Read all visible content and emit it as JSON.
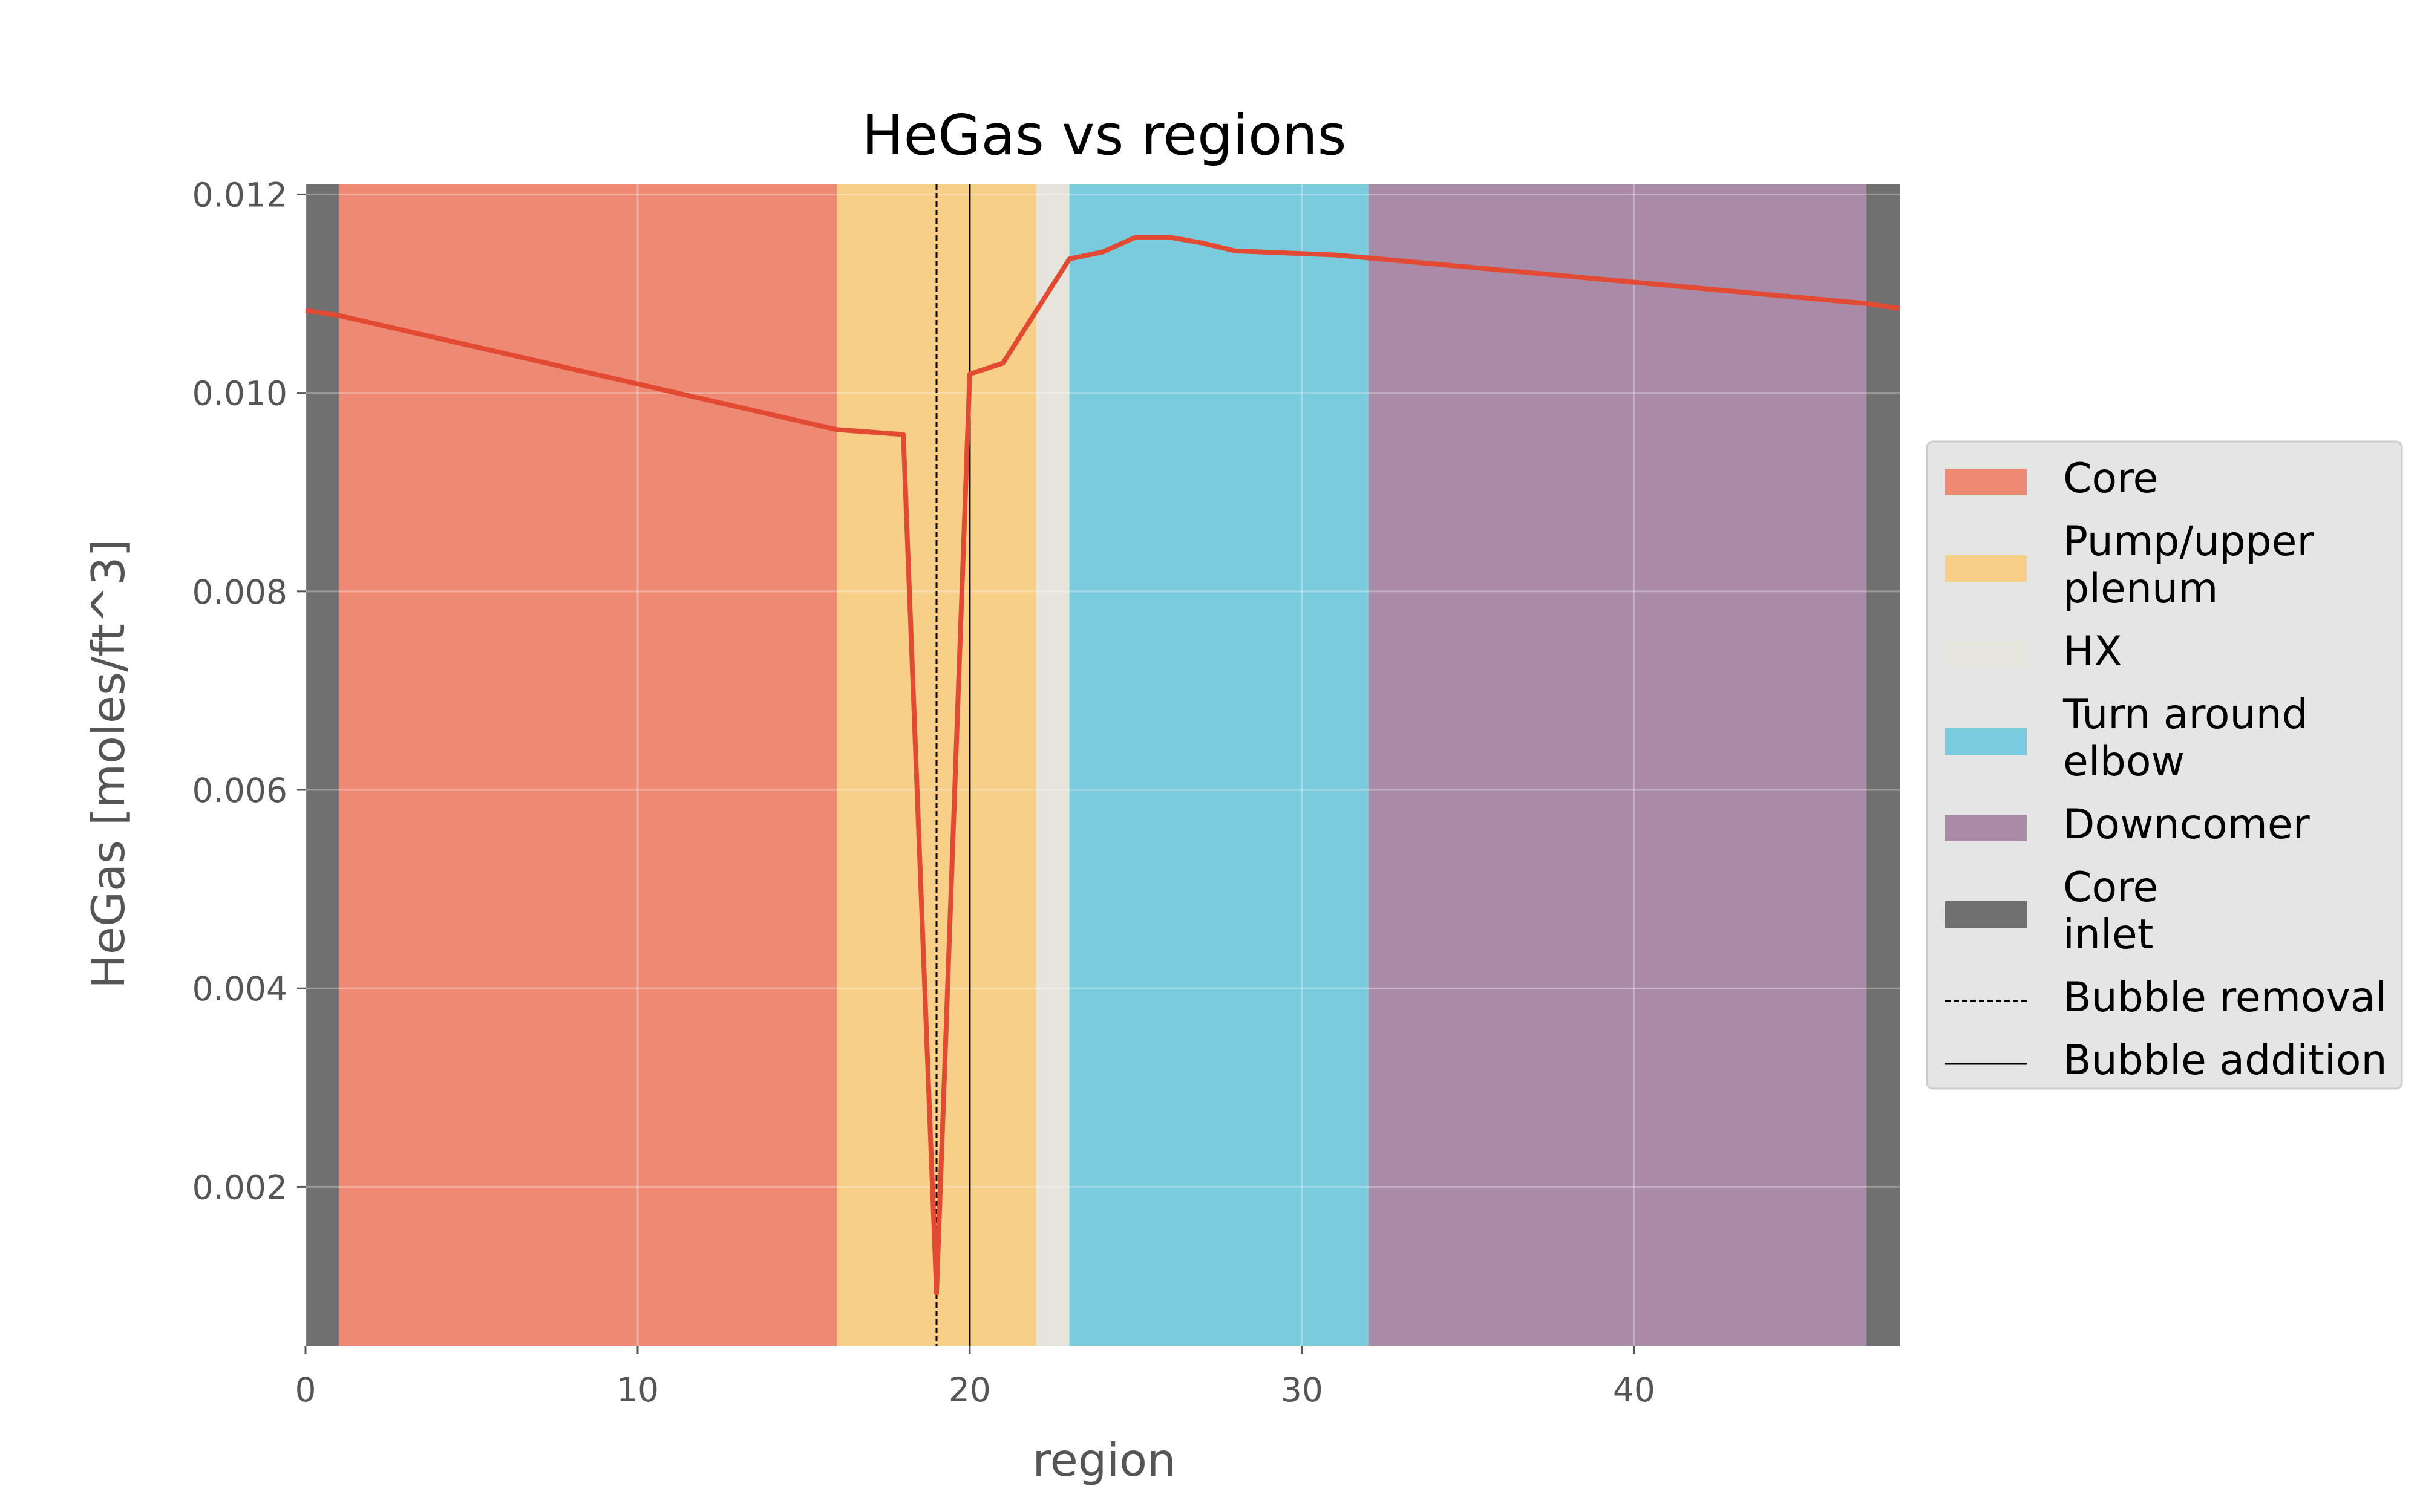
{
  "chart_data": {
    "type": "line",
    "title": "HeGas vs regions",
    "xlabel": "region",
    "ylabel": "HeGas [moles/ft^3]",
    "xlim": [
      0,
      48
    ],
    "ylim": [
      0.0004,
      0.0121
    ],
    "x_ticks": [
      0,
      10,
      20,
      30,
      40
    ],
    "y_ticks": [
      0.002,
      0.004,
      0.006,
      0.008,
      0.01,
      0.012
    ],
    "x_tick_labels": [
      "0",
      "10",
      "20",
      "30",
      "40"
    ],
    "y_tick_labels": [
      "0.002",
      "0.004",
      "0.006",
      "0.008",
      "0.010",
      "0.012"
    ],
    "grid": true,
    "legend_position": "right",
    "regions": [
      {
        "name": "Core",
        "spans": [
          [
            1,
            16
          ]
        ],
        "color": "#ee8a74"
      },
      {
        "name": "Pump/upper plenum",
        "spans": [
          [
            16,
            22
          ]
        ],
        "color": "#f7cf88"
      },
      {
        "name": "HX",
        "spans": [
          [
            22,
            23
          ]
        ],
        "color": "#e5e5dc"
      },
      {
        "name": "Turn around elbow",
        "spans": [
          [
            23,
            32
          ]
        ],
        "color": "#7bcbde"
      },
      {
        "name": "Downcomer",
        "spans": [
          [
            32,
            47
          ]
        ],
        "color": "#a98aa7"
      },
      {
        "name": "Core inlet",
        "spans": [
          [
            0,
            1
          ],
          [
            47,
            48
          ]
        ],
        "color": "#707070"
      }
    ],
    "vlines": [
      {
        "name": "Bubble removal",
        "x": 19,
        "style": "dashed",
        "color": "#000000"
      },
      {
        "name": "Bubble addition",
        "x": 20,
        "style": "solid",
        "color": "#000000"
      }
    ],
    "legend": [
      {
        "lines": [
          "Core"
        ],
        "kind": "patch",
        "color": "#ee8a74"
      },
      {
        "lines": [
          "Pump/upper",
          "plenum"
        ],
        "kind": "patch",
        "color": "#f7cf88"
      },
      {
        "lines": [
          "HX"
        ],
        "kind": "patch",
        "color": "#e5e5dc"
      },
      {
        "lines": [
          "Turn around",
          "elbow"
        ],
        "kind": "patch",
        "color": "#7bcbde"
      },
      {
        "lines": [
          "Downcomer"
        ],
        "kind": "patch",
        "color": "#a98aa7"
      },
      {
        "lines": [
          "Core",
          "inlet"
        ],
        "kind": "patch",
        "color": "#707070"
      },
      {
        "lines": [
          "Bubble removal"
        ],
        "kind": "dashed",
        "color": "#000000"
      },
      {
        "lines": [
          "Bubble addition"
        ],
        "kind": "solid",
        "color": "#000000"
      }
    ],
    "series": [
      {
        "color": "#e24a33",
        "x": [
          0,
          1,
          16,
          18,
          19,
          20,
          21,
          23,
          24,
          25,
          26,
          27,
          28,
          31,
          32,
          47,
          48
        ],
        "y": [
          0.01083,
          0.01078,
          0.00963,
          0.00958,
          0.00093,
          0.01019,
          0.0103,
          0.01135,
          0.01142,
          0.01157,
          0.01157,
          0.01151,
          0.01143,
          0.01139,
          0.01136,
          0.0109,
          0.01085
        ]
      }
    ]
  }
}
